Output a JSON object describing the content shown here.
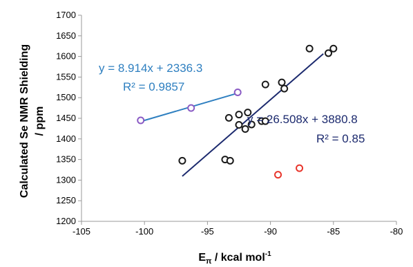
{
  "chart_data": {
    "type": "scatter",
    "title": "",
    "xlabel_main": "E",
    "xlabel_sub": "π",
    "xlabel_rest": " / kcal mol",
    "xlabel_sup": "-1",
    "ylabel_line1": "Calculated Se NMR Shielding",
    "ylabel_line2": "/ ppm",
    "xlim": [
      -105,
      -80
    ],
    "ylim": [
      1200,
      1700
    ],
    "xticks": [
      "-105",
      "-100",
      "-95",
      "-90",
      "-85",
      "-80"
    ],
    "yticks": [
      "1200",
      "1250",
      "1300",
      "1350",
      "1400",
      "1450",
      "1500",
      "1550",
      "1600",
      "1650",
      "1700"
    ],
    "grid": false,
    "series": [
      {
        "color": "#1a1a1a",
        "marker": "open-circle",
        "points": [
          [
            -97.0,
            1347
          ],
          [
            -93.6,
            1350
          ],
          [
            -93.2,
            1347
          ],
          [
            -93.3,
            1451
          ],
          [
            -92.5,
            1459
          ],
          [
            -92.5,
            1434
          ],
          [
            -91.8,
            1464
          ],
          [
            -92.0,
            1424
          ],
          [
            -91.5,
            1435
          ],
          [
            -90.7,
            1443
          ],
          [
            -90.4,
            1443
          ],
          [
            -90.4,
            1532
          ],
          [
            -89.1,
            1537
          ],
          [
            -88.9,
            1522
          ],
          [
            -86.9,
            1619
          ],
          [
            -85.4,
            1608
          ],
          [
            -85.0,
            1619
          ]
        ],
        "fit": {
          "slope": 26.508,
          "intercept": 3880.8,
          "x_range": [
            -97,
            -85.8
          ],
          "color": "#1c2a6e"
        }
      },
      {
        "color": "#8a5bc4",
        "marker": "open-circle",
        "points": [
          [
            -100.3,
            1445
          ],
          [
            -96.3,
            1475
          ],
          [
            -92.6,
            1513
          ]
        ],
        "fit": {
          "slope": 8.914,
          "intercept": 2336.3,
          "x_range": [
            -100.3,
            -92.6
          ],
          "color": "#2e7fc0"
        }
      },
      {
        "color": "#e8352b",
        "marker": "open-circle",
        "points": [
          [
            -89.4,
            1313
          ],
          [
            -87.7,
            1329
          ]
        ]
      }
    ],
    "annotations": {
      "blue_eq": "y = 8.914x + 2336.3",
      "blue_r2": "R² = 0.9857",
      "navy_eq": "y = 26.508x + 3880.8",
      "navy_r2": "R² = 0.85"
    }
  }
}
